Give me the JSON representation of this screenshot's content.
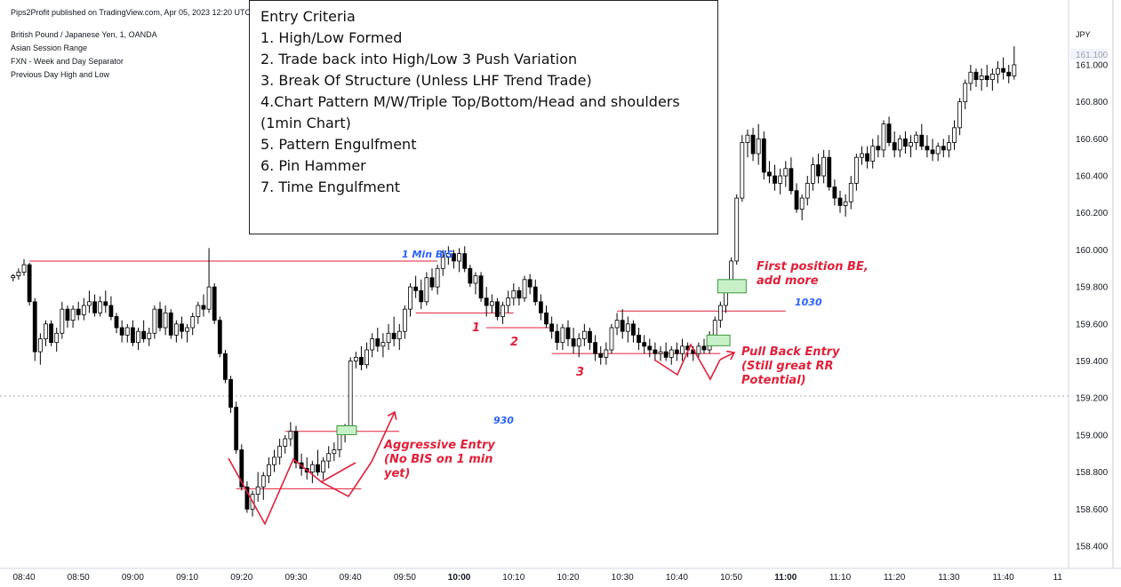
{
  "header": {
    "published": "Pips2Profit published on TradingView.com, Apr 05, 2023 12:20 UTC-",
    "symbol": "British Pound / Japanese Yen, 1, OANDA",
    "indicators": [
      "Asian Session Range",
      "FXN - Week and Day Separator",
      "Previous Day High and Low"
    ],
    "currency": "JPY"
  },
  "criteria": {
    "title": "Entry Criteria",
    "items": [
      "1. High/Low Formed",
      "2. Trade back into High/Low 3 Push Variation",
      "3. Break Of Structure (Unless LHF Trend Trade)",
      "4.Chart Pattern M/W/Triple Top/Bottom/Head and shoulders",
      "(1min Chart)",
      "5. Pattern Engulfment",
      "6. Pin Hammer",
      "7. Time Engulfment"
    ]
  },
  "annotations": {
    "bis": "1 Min BIS",
    "first_position": "First position BE,\nadd more",
    "level_1030": "1030",
    "pull_back": "Pull Back Entry\n(Still great RR\nPotential)",
    "aggressive": "Aggressive Entry\n(No BIS on 1 min\nyet)",
    "level_930": "930",
    "push_1": "1",
    "push_2": "2",
    "push_3": "3"
  },
  "colors": {
    "up_candle": "#ffffff",
    "down_candle": "#000000",
    "annotation": "#e0213a",
    "blue_label": "#2962ff",
    "entry_box": "#c8f0c8"
  },
  "chart_data": {
    "type": "candlestick",
    "title": "British Pound / Japanese Yen, 1, OANDA",
    "ylabel": "JPY",
    "ylim": [
      158.28,
      161.35
    ],
    "y_ticks": [
      "161.000",
      "160.800",
      "160.600",
      "160.400",
      "160.200",
      "160.000",
      "159.800",
      "159.600",
      "159.400",
      "159.200",
      "159.000",
      "158.800",
      "158.600",
      "158.400"
    ],
    "x_ticks": [
      "08:40",
      "08:50",
      "09:00",
      "09:10",
      "09:20",
      "09:30",
      "09:40",
      "09:50",
      "10:00",
      "10:10",
      "10:20",
      "10:30",
      "10:40",
      "10:50",
      "11:00",
      "11:10",
      "11:20",
      "11:30",
      "11:40",
      "11"
    ],
    "current_price": "161.100",
    "dotted_level": 159.21,
    "x_start": "08:37",
    "x_end": "11:55",
    "candles": [
      [
        "08:38",
        159.85,
        159.87,
        159.83,
        159.86
      ],
      [
        "08:39",
        159.86,
        159.9,
        159.84,
        159.88
      ],
      [
        "08:40",
        159.88,
        159.95,
        159.86,
        159.92
      ],
      [
        "08:41",
        159.92,
        159.93,
        159.7,
        159.72
      ],
      [
        "08:42",
        159.72,
        159.74,
        159.4,
        159.45
      ],
      [
        "08:43",
        159.45,
        159.55,
        159.38,
        159.52
      ],
      [
        "08:44",
        159.52,
        159.62,
        159.48,
        159.6
      ],
      [
        "08:45",
        159.6,
        159.62,
        159.48,
        159.5
      ],
      [
        "08:46",
        159.5,
        159.58,
        159.45,
        159.55
      ],
      [
        "08:47",
        159.55,
        159.72,
        159.52,
        159.68
      ],
      [
        "08:48",
        159.68,
        159.7,
        159.58,
        159.62
      ],
      [
        "08:49",
        159.62,
        159.7,
        159.58,
        159.68
      ],
      [
        "08:50",
        159.68,
        159.72,
        159.62,
        159.65
      ],
      [
        "08:51",
        159.65,
        159.74,
        159.62,
        159.7
      ],
      [
        "08:52",
        159.7,
        159.78,
        159.66,
        159.72
      ],
      [
        "08:53",
        159.72,
        159.76,
        159.64,
        159.66
      ],
      [
        "08:54",
        159.66,
        159.75,
        159.64,
        159.72
      ],
      [
        "08:55",
        159.72,
        159.78,
        159.66,
        159.7
      ],
      [
        "08:56",
        159.7,
        159.75,
        159.62,
        159.64
      ],
      [
        "08:57",
        159.64,
        159.66,
        159.55,
        159.58
      ],
      [
        "08:58",
        159.58,
        159.62,
        159.5,
        159.54
      ],
      [
        "08:59",
        159.54,
        159.6,
        159.5,
        159.58
      ],
      [
        "09:00",
        159.58,
        159.62,
        159.48,
        159.5
      ],
      [
        "09:01",
        159.5,
        159.58,
        159.46,
        159.56
      ],
      [
        "09:02",
        159.56,
        159.62,
        159.5,
        159.52
      ],
      [
        "09:03",
        159.52,
        159.58,
        159.48,
        159.55
      ],
      [
        "09:04",
        159.55,
        159.7,
        159.52,
        159.68
      ],
      [
        "09:05",
        159.68,
        159.72,
        159.56,
        159.58
      ],
      [
        "09:06",
        159.58,
        159.7,
        159.54,
        159.66
      ],
      [
        "09:07",
        159.66,
        159.68,
        159.52,
        159.54
      ],
      [
        "09:08",
        159.54,
        159.62,
        159.5,
        159.6
      ],
      [
        "09:09",
        159.6,
        159.64,
        159.52,
        159.56
      ],
      [
        "09:10",
        159.56,
        159.6,
        159.5,
        159.58
      ],
      [
        "09:11",
        159.58,
        159.66,
        159.54,
        159.64
      ],
      [
        "09:12",
        159.64,
        159.72,
        159.6,
        159.7
      ],
      [
        "09:13",
        159.7,
        159.76,
        159.64,
        159.68
      ],
      [
        "09:14",
        159.68,
        160.01,
        159.66,
        159.8
      ],
      [
        "09:15",
        159.8,
        159.82,
        159.6,
        159.62
      ],
      [
        "09:16",
        159.62,
        159.64,
        159.42,
        159.44
      ],
      [
        "09:17",
        159.44,
        159.46,
        159.28,
        159.3
      ],
      [
        "09:18",
        159.3,
        159.32,
        159.12,
        159.15
      ],
      [
        "09:19",
        159.15,
        159.18,
        158.9,
        158.92
      ],
      [
        "09:20",
        158.92,
        158.95,
        158.7,
        158.72
      ],
      [
        "09:21",
        158.72,
        158.75,
        158.58,
        158.6
      ],
      [
        "09:22",
        158.6,
        158.7,
        158.56,
        158.68
      ],
      [
        "09:23",
        158.68,
        158.8,
        158.64,
        158.72
      ],
      [
        "09:24",
        158.72,
        158.8,
        158.65,
        158.78
      ],
      [
        "09:25",
        158.78,
        158.88,
        158.74,
        158.84
      ],
      [
        "09:26",
        158.84,
        158.92,
        158.8,
        158.88
      ],
      [
        "09:27",
        158.88,
        158.98,
        158.84,
        158.94
      ],
      [
        "09:28",
        158.94,
        159.0,
        158.9,
        158.98
      ],
      [
        "09:29",
        158.98,
        159.07,
        158.94,
        159.02
      ],
      [
        "09:30",
        159.02,
        159.05,
        158.82,
        158.85
      ],
      [
        "09:31",
        158.85,
        158.9,
        158.78,
        158.82
      ],
      [
        "09:32",
        158.82,
        158.88,
        158.76,
        158.8
      ],
      [
        "09:33",
        158.8,
        158.86,
        158.74,
        158.84
      ],
      [
        "09:34",
        158.84,
        158.92,
        158.78,
        158.8
      ],
      [
        "09:35",
        158.8,
        158.88,
        158.76,
        158.86
      ],
      [
        "09:36",
        158.86,
        158.94,
        158.82,
        158.9
      ],
      [
        "09:37",
        158.9,
        158.96,
        158.86,
        158.92
      ],
      [
        "09:38",
        158.92,
        159.05,
        158.88,
        159.02
      ],
      [
        "09:39",
        159.02,
        159.06,
        158.96,
        159.04
      ],
      [
        "09:40",
        159.04,
        159.42,
        159.02,
        159.4
      ],
      [
        "09:41",
        159.4,
        159.45,
        159.36,
        159.42
      ],
      [
        "09:42",
        159.42,
        159.48,
        159.35,
        159.38
      ],
      [
        "09:43",
        159.38,
        159.5,
        159.36,
        159.46
      ],
      [
        "09:44",
        159.46,
        159.55,
        159.42,
        159.52
      ],
      [
        "09:45",
        159.52,
        159.58,
        159.45,
        159.48
      ],
      [
        "09:46",
        159.48,
        159.55,
        159.42,
        159.5
      ],
      [
        "09:47",
        159.5,
        159.6,
        159.46,
        159.55
      ],
      [
        "09:48",
        159.55,
        159.64,
        159.48,
        159.52
      ],
      [
        "09:49",
        159.52,
        159.6,
        159.46,
        159.56
      ],
      [
        "09:50",
        159.56,
        159.7,
        159.52,
        159.68
      ],
      [
        "09:51",
        159.68,
        159.82,
        159.64,
        159.8
      ],
      [
        "09:52",
        159.8,
        159.86,
        159.74,
        159.78
      ],
      [
        "09:53",
        159.78,
        159.84,
        159.68,
        159.72
      ],
      [
        "09:54",
        159.72,
        159.88,
        159.7,
        159.85
      ],
      [
        "09:55",
        159.85,
        159.9,
        159.78,
        159.8
      ],
      [
        "09:56",
        159.8,
        159.92,
        159.76,
        159.9
      ],
      [
        "09:57",
        159.9,
        160.0,
        159.86,
        159.96
      ],
      [
        "09:58",
        159.96,
        160.02,
        159.92,
        159.98
      ],
      [
        "09:59",
        159.98,
        160.0,
        159.9,
        159.94
      ],
      [
        "10:00",
        159.94,
        160.01,
        159.88,
        159.98
      ],
      [
        "10:01",
        159.98,
        160.02,
        159.88,
        159.9
      ],
      [
        "10:02",
        159.9,
        159.92,
        159.8,
        159.82
      ],
      [
        "10:03",
        159.82,
        159.88,
        159.76,
        159.86
      ],
      [
        "10:04",
        159.86,
        159.88,
        159.72,
        159.74
      ],
      [
        "10:05",
        159.74,
        159.8,
        159.64,
        159.7
      ],
      [
        "10:06",
        159.7,
        159.76,
        159.66,
        159.72
      ],
      [
        "10:07",
        159.72,
        159.74,
        159.62,
        159.64
      ],
      [
        "10:08",
        159.64,
        159.72,
        159.6,
        159.7
      ],
      [
        "10:09",
        159.7,
        159.78,
        159.66,
        159.74
      ],
      [
        "10:10",
        159.74,
        159.82,
        159.7,
        159.78
      ],
      [
        "10:11",
        159.78,
        159.8,
        159.7,
        159.74
      ],
      [
        "10:12",
        159.74,
        159.86,
        159.72,
        159.84
      ],
      [
        "10:13",
        159.84,
        159.87,
        159.76,
        159.8
      ],
      [
        "10:14",
        159.8,
        159.84,
        159.7,
        159.72
      ],
      [
        "10:15",
        159.72,
        159.76,
        159.62,
        159.66
      ],
      [
        "10:16",
        159.66,
        159.7,
        159.58,
        159.6
      ],
      [
        "10:17",
        159.6,
        159.64,
        159.52,
        159.56
      ],
      [
        "10:18",
        159.56,
        159.6,
        159.46,
        159.5
      ],
      [
        "10:19",
        159.5,
        159.6,
        159.46,
        159.58
      ],
      [
        "10:20",
        159.58,
        159.62,
        159.48,
        159.52
      ],
      [
        "10:21",
        159.52,
        159.58,
        159.44,
        159.48
      ],
      [
        "10:22",
        159.48,
        159.55,
        159.42,
        159.52
      ],
      [
        "10:23",
        159.52,
        159.6,
        159.48,
        159.56
      ],
      [
        "10:24",
        159.56,
        159.58,
        159.46,
        159.5
      ],
      [
        "10:25",
        159.5,
        159.54,
        159.4,
        159.44
      ],
      [
        "10:26",
        159.44,
        159.48,
        159.38,
        159.42
      ],
      [
        "10:27",
        159.42,
        159.5,
        159.38,
        159.46
      ],
      [
        "10:28",
        159.46,
        159.6,
        159.44,
        159.58
      ],
      [
        "10:29",
        159.58,
        159.66,
        159.54,
        159.62
      ],
      [
        "10:30",
        159.62,
        159.68,
        159.52,
        159.56
      ],
      [
        "10:31",
        159.56,
        159.64,
        159.5,
        159.6
      ],
      [
        "10:32",
        159.6,
        159.62,
        159.5,
        159.54
      ],
      [
        "10:33",
        159.54,
        159.58,
        159.46,
        159.5
      ],
      [
        "10:34",
        159.5,
        159.54,
        159.44,
        159.48
      ],
      [
        "10:35",
        159.48,
        159.52,
        159.42,
        159.46
      ],
      [
        "10:36",
        159.46,
        159.5,
        159.4,
        159.44
      ],
      [
        "10:37",
        159.44,
        159.48,
        159.4,
        159.45
      ],
      [
        "10:38",
        159.45,
        159.5,
        159.4,
        159.42
      ],
      [
        "10:39",
        159.42,
        159.48,
        159.38,
        159.46
      ],
      [
        "10:40",
        159.46,
        159.5,
        159.4,
        159.44
      ],
      [
        "10:41",
        159.44,
        159.52,
        159.4,
        159.48
      ],
      [
        "10:42",
        159.48,
        159.5,
        159.42,
        159.46
      ],
      [
        "10:43",
        159.46,
        159.48,
        159.4,
        159.44
      ],
      [
        "10:44",
        159.44,
        159.5,
        159.42,
        159.48
      ],
      [
        "10:45",
        159.48,
        159.52,
        159.44,
        159.46
      ],
      [
        "10:46",
        159.46,
        159.56,
        159.44,
        159.54
      ],
      [
        "10:47",
        159.54,
        159.64,
        159.52,
        159.62
      ],
      [
        "10:48",
        159.62,
        159.72,
        159.58,
        159.7
      ],
      [
        "10:49",
        159.7,
        159.84,
        159.66,
        159.82
      ],
      [
        "10:50",
        159.82,
        159.96,
        159.78,
        159.94
      ],
      [
        "10:51",
        159.94,
        160.3,
        159.92,
        160.28
      ],
      [
        "10:52",
        160.28,
        160.62,
        160.26,
        160.58
      ],
      [
        "10:53",
        160.58,
        160.65,
        160.5,
        160.62
      ],
      [
        "10:54",
        160.62,
        160.66,
        160.48,
        160.52
      ],
      [
        "10:55",
        160.52,
        160.68,
        160.46,
        160.6
      ],
      [
        "10:56",
        160.6,
        160.64,
        160.38,
        160.42
      ],
      [
        "10:57",
        160.42,
        160.48,
        160.36,
        160.4
      ],
      [
        "10:58",
        160.4,
        160.46,
        160.32,
        160.36
      ],
      [
        "10:59",
        160.36,
        160.44,
        160.3,
        160.4
      ],
      [
        "11:00",
        160.4,
        160.48,
        160.34,
        160.44
      ],
      [
        "11:01",
        160.44,
        160.5,
        160.3,
        160.32
      ],
      [
        "11:02",
        160.32,
        160.36,
        160.2,
        160.22
      ],
      [
        "11:03",
        160.22,
        160.3,
        160.16,
        160.28
      ],
      [
        "11:04",
        160.28,
        160.4,
        160.24,
        160.36
      ],
      [
        "11:05",
        160.36,
        160.5,
        160.32,
        160.46
      ],
      [
        "11:06",
        160.46,
        160.52,
        160.36,
        160.4
      ],
      [
        "11:07",
        160.4,
        160.54,
        160.36,
        160.5
      ],
      [
        "11:08",
        160.5,
        160.54,
        160.32,
        160.34
      ],
      [
        "11:09",
        160.34,
        160.38,
        160.24,
        160.28
      ],
      [
        "11:10",
        160.28,
        160.32,
        160.2,
        160.24
      ],
      [
        "11:11",
        160.24,
        160.3,
        160.18,
        160.26
      ],
      [
        "11:12",
        160.26,
        160.4,
        160.22,
        160.36
      ],
      [
        "11:13",
        160.36,
        160.52,
        160.32,
        160.5
      ],
      [
        "11:14",
        160.5,
        160.56,
        160.46,
        160.52
      ],
      [
        "11:15",
        160.52,
        160.56,
        160.44,
        160.48
      ],
      [
        "11:16",
        160.48,
        160.6,
        160.44,
        160.56
      ],
      [
        "11:17",
        160.56,
        160.62,
        160.5,
        160.54
      ],
      [
        "11:18",
        160.54,
        160.7,
        160.5,
        160.68
      ],
      [
        "11:19",
        160.68,
        160.72,
        160.56,
        160.58
      ],
      [
        "11:20",
        160.58,
        160.64,
        160.5,
        160.54
      ],
      [
        "11:21",
        160.54,
        160.62,
        160.5,
        160.6
      ],
      [
        "11:22",
        160.6,
        160.64,
        160.52,
        160.56
      ],
      [
        "11:23",
        160.56,
        160.62,
        160.5,
        160.58
      ],
      [
        "11:24",
        160.58,
        160.64,
        160.54,
        160.62
      ],
      [
        "11:25",
        160.62,
        160.68,
        160.54,
        160.56
      ],
      [
        "11:26",
        160.56,
        160.62,
        160.5,
        160.54
      ],
      [
        "11:27",
        160.54,
        160.6,
        160.48,
        160.52
      ],
      [
        "11:28",
        160.52,
        160.58,
        160.48,
        160.56
      ],
      [
        "11:29",
        160.56,
        160.6,
        160.5,
        160.54
      ],
      [
        "11:30",
        160.54,
        160.62,
        160.5,
        160.58
      ],
      [
        "11:31",
        160.58,
        160.7,
        160.54,
        160.66
      ],
      [
        "11:32",
        160.66,
        160.82,
        160.62,
        160.8
      ],
      [
        "11:33",
        160.8,
        160.92,
        160.76,
        160.9
      ],
      [
        "11:34",
        160.9,
        161.0,
        160.86,
        160.96
      ],
      [
        "11:35",
        160.96,
        160.98,
        160.88,
        160.92
      ],
      [
        "11:36",
        160.92,
        160.98,
        160.86,
        160.94
      ],
      [
        "11:37",
        160.94,
        161.0,
        160.88,
        160.92
      ],
      [
        "11:38",
        160.92,
        160.98,
        160.86,
        160.95
      ],
      [
        "11:39",
        160.95,
        161.02,
        160.9,
        160.98
      ],
      [
        "11:40",
        160.98,
        161.04,
        160.92,
        160.96
      ],
      [
        "11:41",
        160.96,
        161.0,
        160.9,
        160.94
      ],
      [
        "11:42",
        160.94,
        161.1,
        160.92,
        161.0
      ]
    ]
  }
}
